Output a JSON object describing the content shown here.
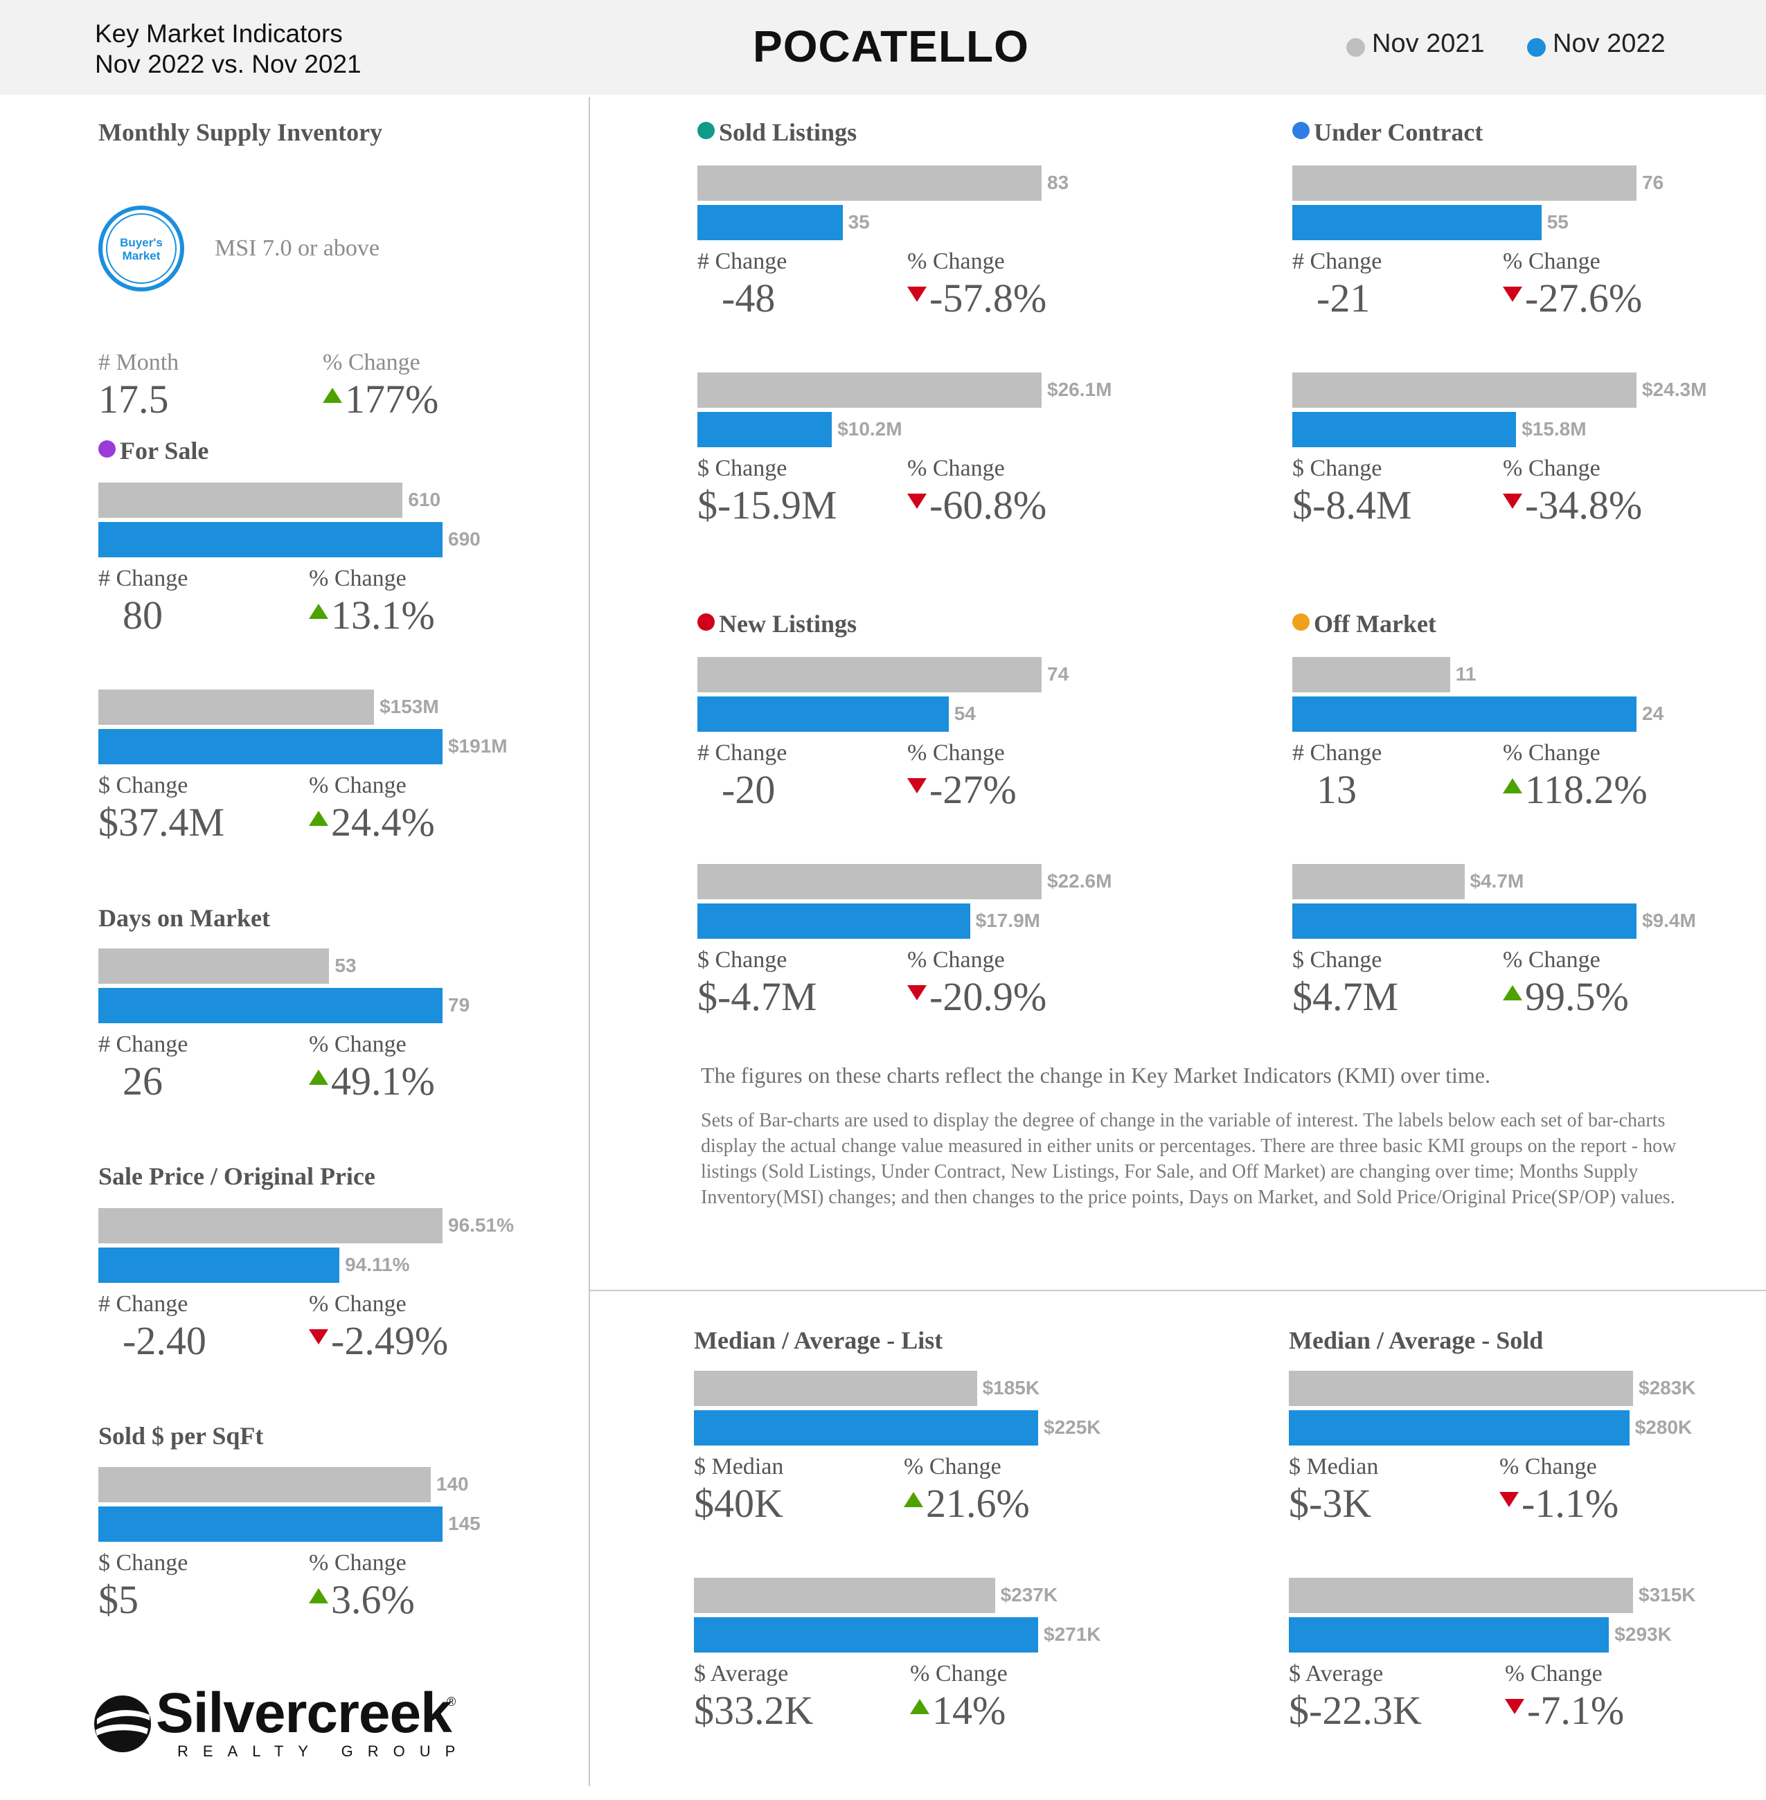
{
  "header": {
    "subtitle_line1": "Key Market Indicators",
    "subtitle_line2": "Nov 2022 vs. Nov 2021",
    "city": "POCATELLO",
    "legend": [
      {
        "label": "Nov 2021",
        "color": "#bfbfbf"
      },
      {
        "label": "Nov 2022",
        "color": "#1b8fdc"
      }
    ]
  },
  "colors": {
    "prev": "#bfbfbf",
    "curr": "#1b8fdc",
    "up": "#4ea200",
    "down": "#d0021b"
  },
  "msi": {
    "title": "Monthly Supply Inventory",
    "badge_line1": "Buyer's",
    "badge_line2": "Market",
    "badge_icon": "buyers-market-badge",
    "condition": "MSI 7.0 or above",
    "month_label": "# Month",
    "month_value": "17.5",
    "pct_label": "% Change",
    "pct_value": "177%",
    "pct_dir": "up"
  },
  "note": {
    "main": "The figures on these charts reflect the change in Key Market Indicators (KMI) over time.",
    "detail": "Sets of Bar-charts are used to display the degree of change in the variable of interest. The labels below each set of bar-charts display the actual change value measured in either units or percentages. There are three basic KMI groups on the report - how listings (Sold Listings, Under Contract, New Listings, For Sale, and Off Market) are changing over time; Months Supply Inventory(MSI) changes; and then changes to the price points, Days on Market, and Sold Price/Original Price(SP/OP) values."
  },
  "logo": {
    "name": "Silvercreek",
    "tagline": "REALTY GROUP",
    "reg": "®"
  },
  "chart_data": [
    {
      "type": "bar",
      "section": "For Sale",
      "dot_color": "#9b3bd6",
      "series": [
        "Nov 2021",
        "Nov 2022"
      ],
      "values": [
        610,
        690
      ],
      "labels": [
        "610",
        "690"
      ],
      "change_label": "# Change",
      "change": "80",
      "pct_label": "% Change",
      "pct": "13.1%",
      "dir": "up"
    },
    {
      "type": "bar",
      "section": "For Sale",
      "series": [
        "Nov 2021",
        "Nov 2022"
      ],
      "values": [
        153,
        191
      ],
      "labels": [
        "$153M",
        "$191M"
      ],
      "change_label": "$ Change",
      "change": "$37.4M",
      "pct_label": "% Change",
      "pct": "24.4%",
      "dir": "up"
    },
    {
      "type": "bar",
      "section": "Days on Market",
      "series": [
        "Nov 2021",
        "Nov 2022"
      ],
      "values": [
        53,
        79
      ],
      "labels": [
        "53",
        "79"
      ],
      "change_label": "# Change",
      "change": "26",
      "pct_label": "% Change",
      "pct": "49.1%",
      "dir": "up"
    },
    {
      "type": "bar",
      "section": "Sale Price / Original Price",
      "series": [
        "Nov 2021",
        "Nov 2022"
      ],
      "values": [
        96.51,
        94.11
      ],
      "labels": [
        "96.51%",
        "94.11%"
      ],
      "change_label": "# Change",
      "change": "-2.40",
      "pct_label": "% Change",
      "pct": "-2.49%",
      "dir": "down"
    },
    {
      "type": "bar",
      "section": "Sold $ per SqFt",
      "series": [
        "Nov 2021",
        "Nov 2022"
      ],
      "values": [
        140,
        145
      ],
      "labels": [
        "140",
        "145"
      ],
      "change_label": "$ Change",
      "change": "$5",
      "pct_label": "% Change",
      "pct": "3.6%",
      "dir": "up"
    },
    {
      "type": "bar",
      "section": "Sold Listings",
      "dot_color": "#11998a",
      "series": [
        "Nov 2021",
        "Nov 2022"
      ],
      "values": [
        83,
        35
      ],
      "labels": [
        "83",
        "35"
      ],
      "change_label": "# Change",
      "change": "-48",
      "pct_label": "% Change",
      "pct": "-57.8%",
      "dir": "down"
    },
    {
      "type": "bar",
      "section": "Sold Listings",
      "series": [
        "Nov 2021",
        "Nov 2022"
      ],
      "values": [
        26.1,
        10.2
      ],
      "labels": [
        "$26.1M",
        "$10.2M"
      ],
      "change_label": "$ Change",
      "change": "$-15.9M",
      "pct_label": "% Change",
      "pct": "-60.8%",
      "dir": "down"
    },
    {
      "type": "bar",
      "section": "Under Contract",
      "dot_color": "#2e7ce6",
      "series": [
        "Nov 2021",
        "Nov 2022"
      ],
      "values": [
        76,
        55
      ],
      "labels": [
        "76",
        "55"
      ],
      "change_label": "# Change",
      "change": "-21",
      "pct_label": "% Change",
      "pct": "-27.6%",
      "dir": "down"
    },
    {
      "type": "bar",
      "section": "Under Contract",
      "series": [
        "Nov 2021",
        "Nov 2022"
      ],
      "values": [
        24.3,
        15.8
      ],
      "labels": [
        "$24.3M",
        "$15.8M"
      ],
      "change_label": "$ Change",
      "change": "$-8.4M",
      "pct_label": "% Change",
      "pct": "-34.8%",
      "dir": "down"
    },
    {
      "type": "bar",
      "section": "New Listings",
      "dot_color": "#d0021b",
      "series": [
        "Nov 2021",
        "Nov 2022"
      ],
      "values": [
        74,
        54
      ],
      "labels": [
        "74",
        "54"
      ],
      "change_label": "# Change",
      "change": "-20",
      "pct_label": "% Change",
      "pct": "-27%",
      "dir": "down"
    },
    {
      "type": "bar",
      "section": "New Listings",
      "series": [
        "Nov 2021",
        "Nov 2022"
      ],
      "values": [
        22.6,
        17.9
      ],
      "labels": [
        "$22.6M",
        "$17.9M"
      ],
      "change_label": "$ Change",
      "change": "$-4.7M",
      "pct_label": "% Change",
      "pct": "-20.9%",
      "dir": "down"
    },
    {
      "type": "bar",
      "section": "Off Market",
      "dot_color": "#f0a11b",
      "series": [
        "Nov 2021",
        "Nov 2022"
      ],
      "values": [
        11,
        24
      ],
      "labels": [
        "11",
        "24"
      ],
      "change_label": "# Change",
      "change": "13",
      "pct_label": "% Change",
      "pct": "118.2%",
      "dir": "up"
    },
    {
      "type": "bar",
      "section": "Off Market",
      "series": [
        "Nov 2021",
        "Nov 2022"
      ],
      "values": [
        4.7,
        9.4
      ],
      "labels": [
        "$4.7M",
        "$9.4M"
      ],
      "change_label": "$ Change",
      "change": "$4.7M",
      "pct_label": "% Change",
      "pct": "99.5%",
      "dir": "up"
    },
    {
      "type": "bar",
      "section": "Median / Average - List",
      "series": [
        "Nov 2021",
        "Nov 2022"
      ],
      "values": [
        185,
        225
      ],
      "labels": [
        "$185K",
        "$225K"
      ],
      "change_label": "$ Median",
      "change": "$40K",
      "pct_label": "% Change",
      "pct": "21.6%",
      "dir": "up"
    },
    {
      "type": "bar",
      "section": "Median / Average - List",
      "series": [
        "Nov 2021",
        "Nov 2022"
      ],
      "values": [
        237,
        271
      ],
      "labels": [
        "$237K",
        "$271K"
      ],
      "change_label": "$ Average",
      "change": "$33.2K",
      "pct_label": "% Change",
      "pct": "14%",
      "dir": "up"
    },
    {
      "type": "bar",
      "section": "Median / Average - Sold",
      "series": [
        "Nov 2021",
        "Nov 2022"
      ],
      "values": [
        283,
        280
      ],
      "labels": [
        "$283K",
        "$280K"
      ],
      "change_label": "$ Median",
      "change": "$-3K",
      "pct_label": "% Change",
      "pct": "-1.1%",
      "dir": "down"
    },
    {
      "type": "bar",
      "section": "Median / Average - Sold",
      "series": [
        "Nov 2021",
        "Nov 2022"
      ],
      "values": [
        315,
        293
      ],
      "labels": [
        "$315K",
        "$293K"
      ],
      "change_label": "$ Average",
      "change": "$-22.3K",
      "pct_label": "% Change",
      "pct": "-7.1%",
      "dir": "down"
    }
  ]
}
